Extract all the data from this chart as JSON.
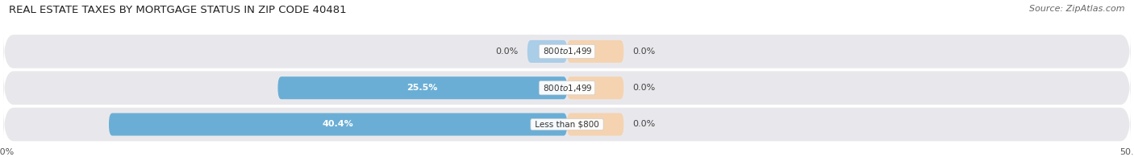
{
  "title": "REAL ESTATE TAXES BY MORTGAGE STATUS IN ZIP CODE 40481",
  "source": "Source: ZipAtlas.com",
  "categories": [
    "Less than $800",
    "$800 to $1,499",
    "$800 to $1,499"
  ],
  "without_mortgage": [
    40.4,
    25.5,
    0.0
  ],
  "with_mortgage": [
    0.0,
    0.0,
    0.0
  ],
  "color_without": "#6aaed6",
  "color_with": "#f0b984",
  "color_without_light": "#aacde8",
  "color_with_light": "#f5d3b0",
  "xlim_left": -50,
  "xlim_right": 50,
  "bar_height": 0.62,
  "row_bg_color": "#e8e8ec",
  "fig_bg_color": "#ffffff",
  "title_fontsize": 9.5,
  "source_fontsize": 8,
  "label_fontsize": 8,
  "category_fontsize": 7.5,
  "legend_fontsize": 8,
  "tick_fontsize": 8,
  "without_min_bar": 3.5,
  "with_min_bar": 5.0
}
